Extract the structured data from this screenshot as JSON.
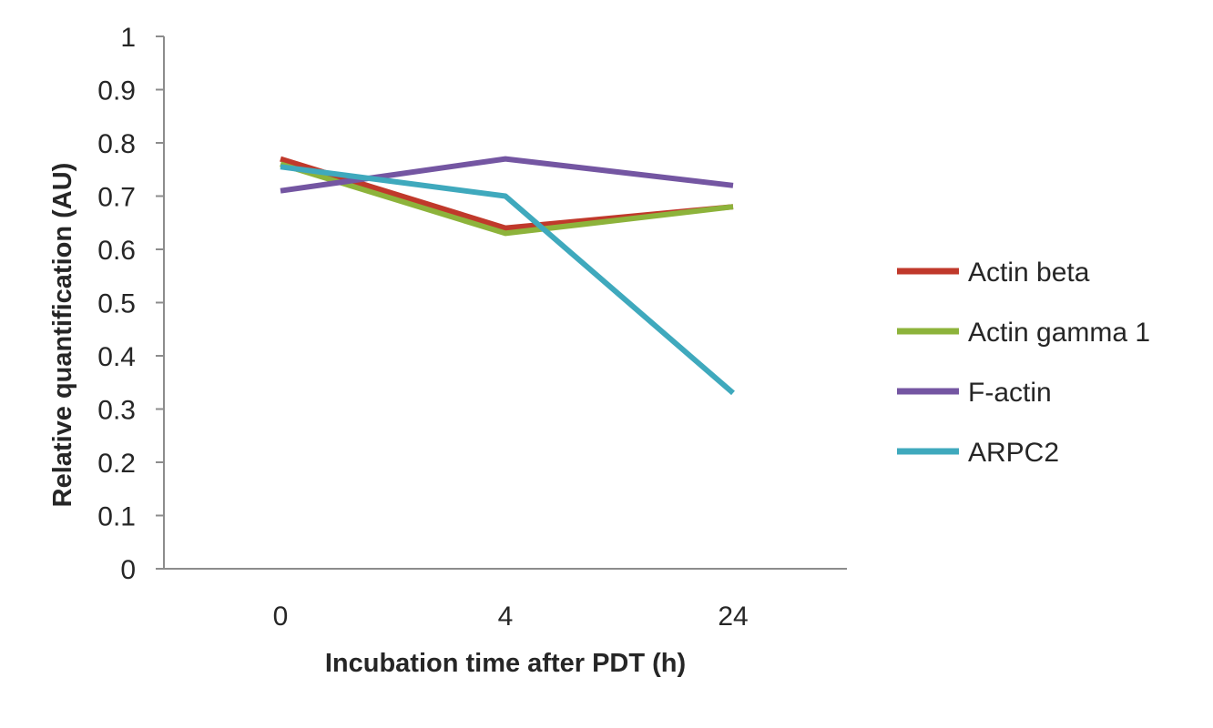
{
  "chart_data": {
    "type": "line",
    "title": "",
    "xlabel": "Incubation  time after PDT (h)",
    "ylabel": "Relative quantification  (AU)",
    "categories": [
      "0",
      "4",
      "24"
    ],
    "ylim": [
      0,
      1
    ],
    "yticks": [
      "0",
      "0.1",
      "0.2",
      "0.3",
      "0.4",
      "0.5",
      "0.6",
      "0.7",
      "0.8",
      "0.9",
      "1"
    ],
    "grid": false,
    "legend_position": "right",
    "series": [
      {
        "name": "Actin beta",
        "color": "#c0392b",
        "values": [
          0.77,
          0.64,
          0.68
        ]
      },
      {
        "name": "Actin gamma 1",
        "color": "#8db33b",
        "values": [
          0.76,
          0.63,
          0.68
        ]
      },
      {
        "name": "F-actin",
        "color": "#7456a2",
        "values": [
          0.71,
          0.77,
          0.72
        ]
      },
      {
        "name": "ARPC2",
        "color": "#3fa9bd",
        "values": [
          0.755,
          0.7,
          0.33
        ]
      }
    ]
  }
}
